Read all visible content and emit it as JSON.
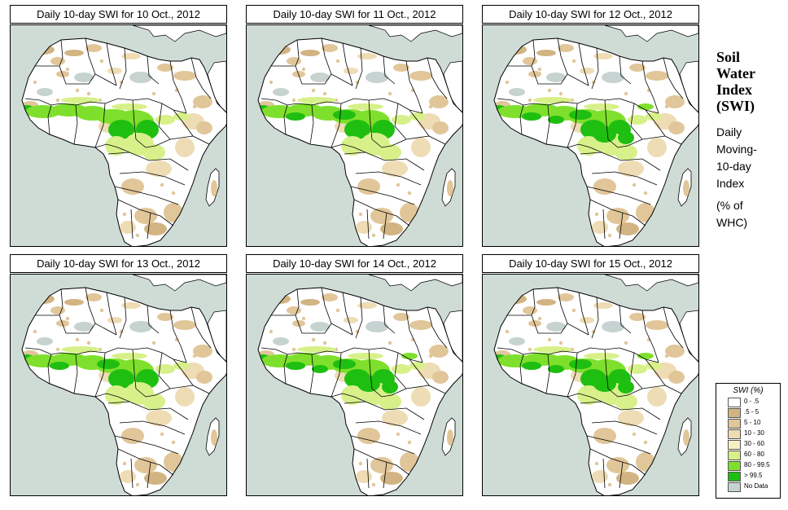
{
  "panels": [
    {
      "title": "Daily 10-day SWI for  10 Oct., 2012",
      "wet_level": 0
    },
    {
      "title": "Daily 10-day SWI for  11 Oct., 2012",
      "wet_level": 1
    },
    {
      "title": "Daily 10-day SWI for  12 Oct., 2012",
      "wet_level": 2
    },
    {
      "title": "Daily 10-day SWI for  13 Oct., 2012",
      "wet_level": 1
    },
    {
      "title": "Daily 10-day SWI for  14 Oct., 2012",
      "wet_level": 2
    },
    {
      "title": "Daily 10-day SWI for  15 Oct., 2012",
      "wet_level": 2
    }
  ],
  "side": {
    "title_lines": [
      "Soil",
      "Water",
      "Index",
      "(SWI)"
    ],
    "sub_lines": [
      "Daily",
      "Moving-",
      "10-day",
      "Index"
    ],
    "unit_lines": [
      "(% of",
      "WHC)"
    ]
  },
  "legend": {
    "title": "SWI (%)",
    "items": [
      {
        "label": "0 - .5",
        "color": "#ffffff"
      },
      {
        "label": ".5 - 5",
        "color": "#d2b482"
      },
      {
        "label": "5 - 10",
        "color": "#e1c699"
      },
      {
        "label": "10 - 30",
        "color": "#eedcb4"
      },
      {
        "label": "30 - 60",
        "color": "#f4f0c4"
      },
      {
        "label": "60 - 80",
        "color": "#d8f08a"
      },
      {
        "label": "80 - 99.5",
        "color": "#7ee02c"
      },
      {
        "label": "> 99.5",
        "color": "#1fbf11"
      },
      {
        "label": "No Data",
        "color": "#c6d3d0"
      }
    ]
  },
  "colors": {
    "ocean": "#cfdcd6",
    "land_dry": "#ffffff",
    "tan": "#e1c699",
    "tan_dark": "#d2b482",
    "pale": "#eedcb4",
    "light_green": "#d8f08a",
    "green": "#7ee02c",
    "dark_green": "#1fbf11",
    "nodata": "#c6d3d0",
    "border": "#000000"
  }
}
